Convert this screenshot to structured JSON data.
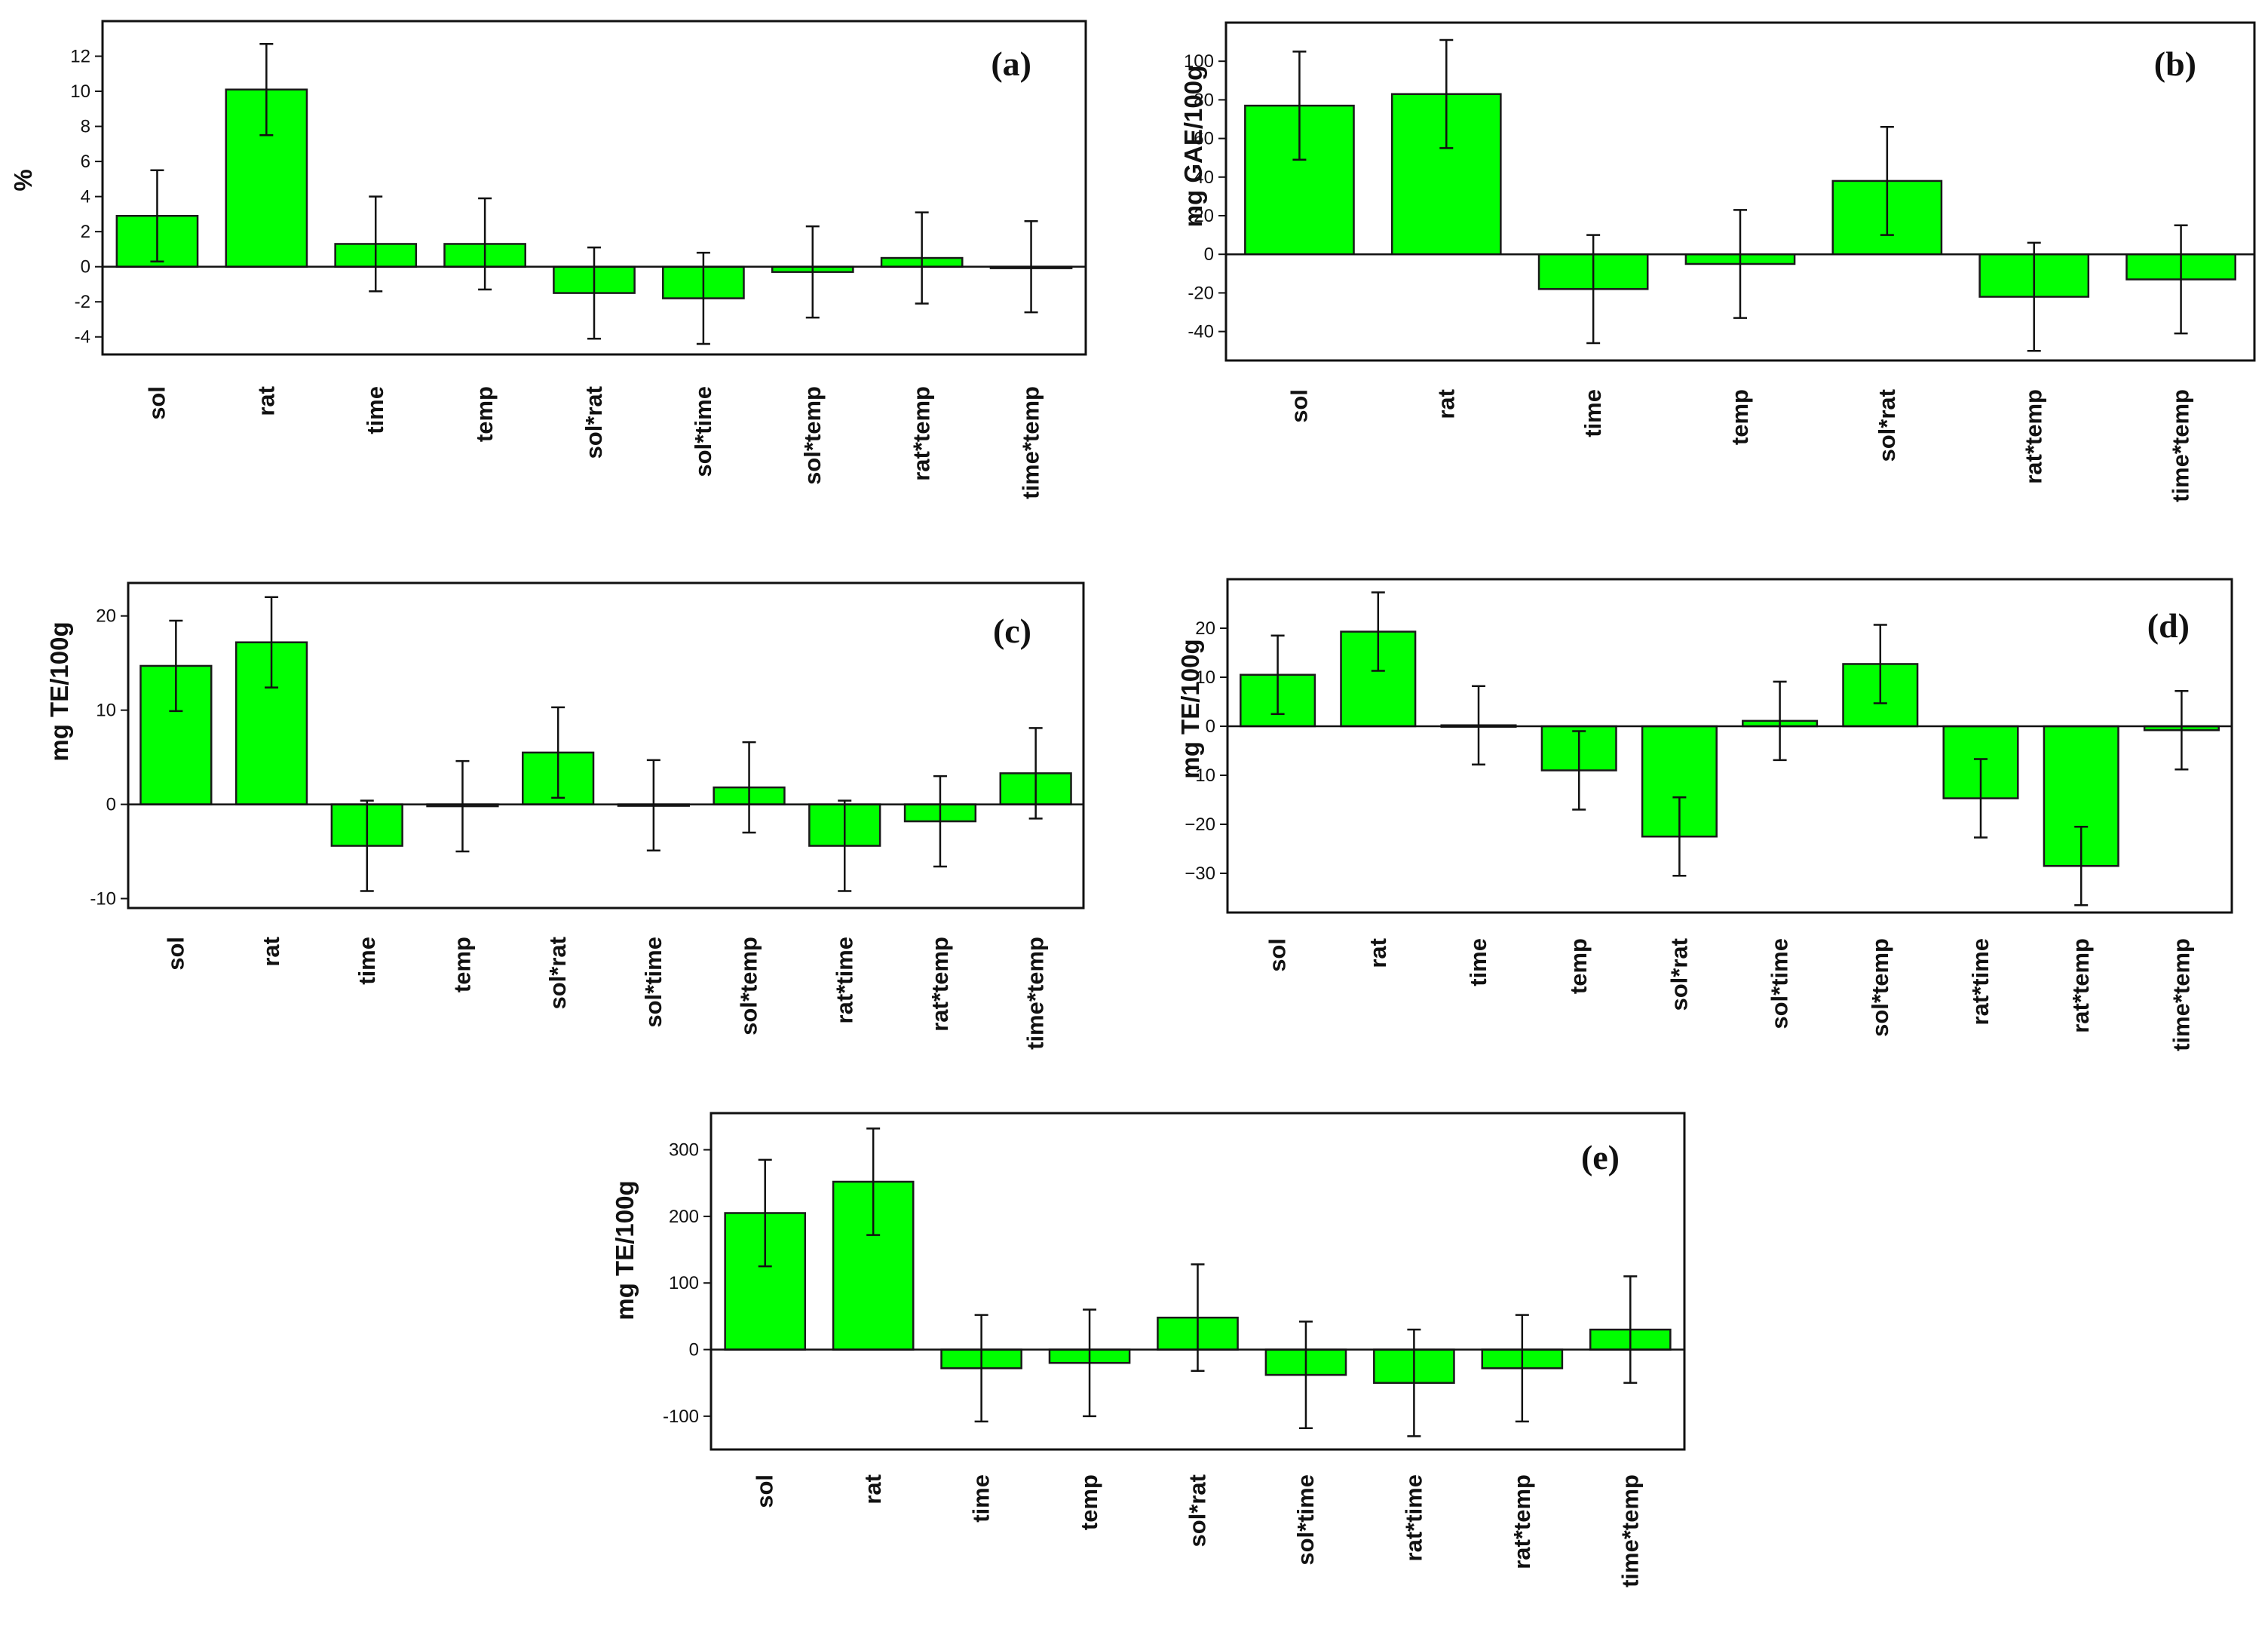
{
  "chart_data": [
    {
      "type": "bar",
      "panel_label": "(a)",
      "ylabel": "%",
      "ylim": [
        -5,
        14
      ],
      "yticks": [
        -4,
        -2,
        0,
        2,
        4,
        6,
        8,
        10,
        12
      ],
      "ytick_labels": [
        "-4",
        "-2",
        "0",
        "2",
        "4",
        "6",
        "8",
        "10",
        "12"
      ],
      "categories": [
        "sol",
        "rat",
        "time",
        "temp",
        "sol*rat",
        "sol*time",
        "sol*temp",
        "rat*temp",
        "time*temp"
      ],
      "values": [
        2.9,
        10.1,
        1.3,
        1.3,
        -1.5,
        -1.8,
        -0.3,
        0.5,
        0.0
      ],
      "errors": [
        2.6,
        2.6,
        2.7,
        2.6,
        2.6,
        2.6,
        2.6,
        2.6,
        2.6
      ]
    },
    {
      "type": "bar",
      "panel_label": "(b)",
      "ylabel": "mg GAE/100g",
      "ylim": [
        -55,
        120
      ],
      "yticks": [
        -40,
        -20,
        0,
        20,
        40,
        60,
        80,
        100
      ],
      "ytick_labels": [
        "-40",
        "-20",
        "0",
        "20",
        "40",
        "60",
        "80",
        "100"
      ],
      "categories": [
        "sol",
        "rat",
        "time",
        "temp",
        "sol*rat",
        "rat*temp",
        "time*temp"
      ],
      "values": [
        77,
        83,
        -18,
        -5,
        38,
        -22,
        -13
      ],
      "errors": [
        28,
        28,
        28,
        28,
        28,
        28,
        28
      ]
    },
    {
      "type": "bar",
      "panel_label": "(c)",
      "ylabel": "mg TE/100g",
      "ylim": [
        -11,
        23.5
      ],
      "yticks": [
        -10,
        0,
        10,
        20
      ],
      "ytick_labels": [
        "-10",
        "0",
        "10",
        "20"
      ],
      "categories": [
        "sol",
        "rat",
        "time",
        "temp",
        "sol*rat",
        "sol*time",
        "sol*temp",
        "rat*time",
        "rat*temp",
        "time*temp"
      ],
      "values": [
        14.7,
        17.2,
        -4.4,
        -0.2,
        5.5,
        -0.1,
        1.8,
        -4.4,
        -1.8,
        3.3
      ],
      "errors": [
        4.8,
        4.8,
        4.8,
        4.8,
        4.8,
        4.8,
        4.8,
        4.8,
        4.8,
        4.8
      ]
    },
    {
      "type": "bar",
      "panel_label": "(d)",
      "ylabel": "mg TE/100g",
      "ylim": [
        -38,
        30
      ],
      "yticks": [
        -30,
        -20,
        -10,
        0,
        10,
        20
      ],
      "ytick_labels": [
        "−30",
        "−20",
        "−10",
        "0",
        "10",
        "20"
      ],
      "categories": [
        "sol",
        "rat",
        "time",
        "temp",
        "sol*rat",
        "sol*time",
        "sol*temp",
        "rat*time",
        "rat*temp",
        "time*temp"
      ],
      "values": [
        10.5,
        19.3,
        0.2,
        -9,
        -22.5,
        1.1,
        12.7,
        -14.7,
        -28.5,
        -0.8
      ],
      "errors": [
        8,
        8,
        8,
        8,
        8,
        8,
        8,
        8,
        8,
        8
      ]
    },
    {
      "type": "bar",
      "panel_label": "(e)",
      "ylabel": "mg TE/100g",
      "ylim": [
        -150,
        355
      ],
      "yticks": [
        -100,
        0,
        100,
        200,
        300
      ],
      "ytick_labels": [
        "-100",
        "0",
        "100",
        "200",
        "300"
      ],
      "categories": [
        "sol",
        "rat",
        "time",
        "temp",
        "sol*rat",
        "sol*time",
        "rat*time",
        "rat*temp",
        "time*temp"
      ],
      "values": [
        205,
        252,
        -28,
        -20,
        48,
        -38,
        -50,
        -28,
        30
      ],
      "errors": [
        80,
        80,
        80,
        80,
        80,
        80,
        80,
        80,
        80
      ]
    }
  ],
  "colors": {
    "bar_fill": "#00ff00",
    "bar_stroke": "#1a1a1a",
    "axis": "#111111",
    "background": "#ffffff"
  }
}
